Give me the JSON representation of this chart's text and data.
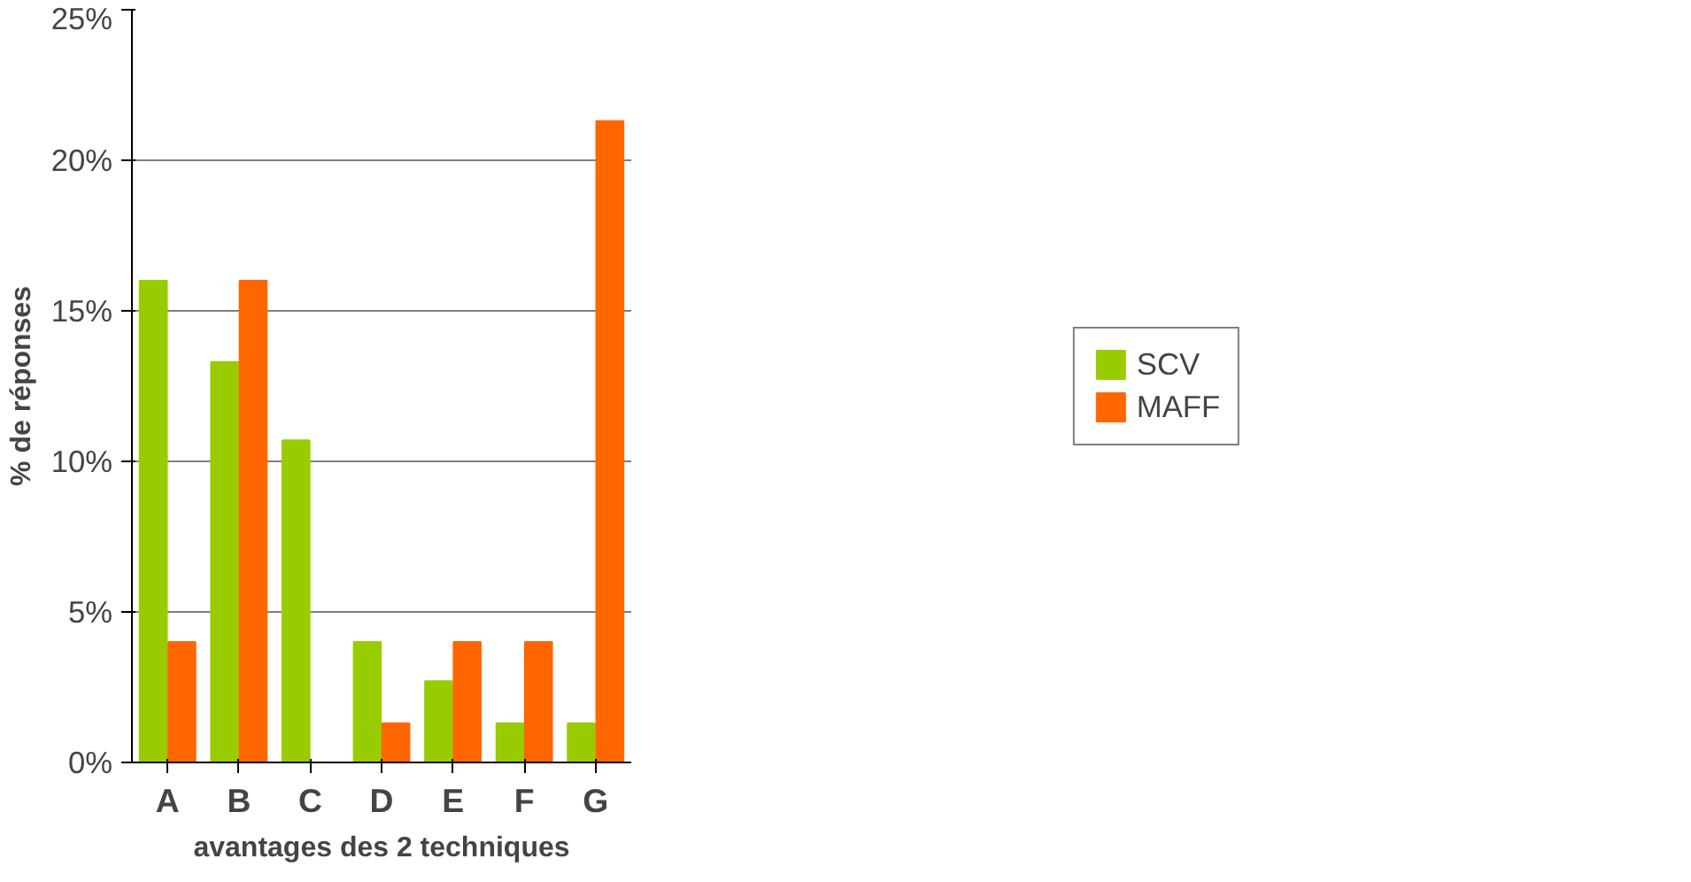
{
  "chart_data": {
    "type": "bar",
    "xlabel": "avantages des 2 techniques",
    "ylabel": "% de réponses",
    "categories": [
      "A",
      "B",
      "C",
      "D",
      "E",
      "F",
      "G"
    ],
    "series": [
      {
        "name": "SCV",
        "color": "#99cc00",
        "values": [
          16,
          13.3,
          10.7,
          4,
          2.7,
          1.3,
          1.3
        ]
      },
      {
        "name": "MAFF",
        "color": "#ff6600",
        "values": [
          4,
          16,
          0,
          1.3,
          4,
          4,
          21.3
        ]
      }
    ],
    "ylim": [
      0,
      25
    ],
    "yticks": [
      {
        "value": 0,
        "label": "0%"
      },
      {
        "value": 5,
        "label": "5%"
      },
      {
        "value": 10,
        "label": "10%"
      },
      {
        "value": 15,
        "label": "15%"
      },
      {
        "value": 20,
        "label": "20%"
      },
      {
        "value": 25,
        "label": "25%"
      }
    ],
    "grid": "y",
    "legend": "right"
  }
}
